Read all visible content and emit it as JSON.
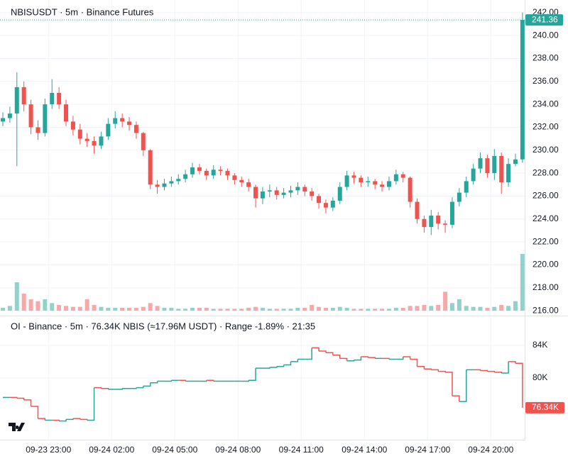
{
  "chart_data": [
    {
      "type": "candlestick",
      "title": "NBISUSDT · 5m · Binance Futures",
      "x": [
        "09-23 20:40",
        "09-23 21:00",
        "09-23 21:20",
        "09-23 21:40",
        "09-23 22:00",
        "09-23 22:20",
        "09-23 22:40",
        "09-23 23:00",
        "09-23 23:20",
        "09-23 23:40",
        "09-24 00:00",
        "09-24 00:20",
        "09-24 00:40",
        "09-24 01:00",
        "09-24 01:20",
        "09-24 01:40",
        "09-24 02:00",
        "09-24 02:20",
        "09-24 02:40",
        "09-24 03:00",
        "09-24 03:20",
        "09-24 03:40",
        "09-24 04:00",
        "09-24 04:20",
        "09-24 04:40",
        "09-24 05:00",
        "09-24 05:20",
        "09-24 05:40",
        "09-24 06:00",
        "09-24 06:20",
        "09-24 06:40",
        "09-24 07:00",
        "09-24 07:20",
        "09-24 07:40",
        "09-24 08:00",
        "09-24 08:20",
        "09-24 08:40",
        "09-24 09:00",
        "09-24 09:20",
        "09-24 09:40",
        "09-24 10:00",
        "09-24 10:20",
        "09-24 10:40",
        "09-24 11:00",
        "09-24 11:20",
        "09-24 11:40",
        "09-24 12:00",
        "09-24 12:20",
        "09-24 12:40",
        "09-24 13:00",
        "09-24 13:20",
        "09-24 13:40",
        "09-24 14:00",
        "09-24 14:20",
        "09-24 14:40",
        "09-24 15:00",
        "09-24 15:20",
        "09-24 15:40",
        "09-24 16:00",
        "09-24 16:20",
        "09-24 16:40",
        "09-24 17:00",
        "09-24 17:20",
        "09-24 17:40",
        "09-24 18:00",
        "09-24 18:20",
        "09-24 18:40",
        "09-24 19:00",
        "09-24 19:20",
        "09-24 19:40",
        "09-24 20:00",
        "09-24 20:20",
        "09-24 20:40",
        "09-24 21:00",
        "09-24 21:20"
      ],
      "open": [
        232.5,
        232.8,
        233.2,
        235.5,
        234,
        232,
        231.5,
        234,
        235,
        234,
        232.5,
        231.8,
        231,
        230.8,
        230.4,
        231.2,
        232.3,
        232.8,
        232.5,
        232.2,
        231.5,
        230,
        227,
        226.8,
        227.1,
        227.3,
        227.5,
        227.9,
        228.5,
        228.2,
        227.8,
        228.3,
        228.2,
        227.8,
        227.4,
        227.2,
        226.8,
        225.8,
        226.4,
        226.5,
        226.1,
        226.3,
        226.5,
        226.8,
        226.4,
        226,
        225.4,
        225,
        225.6,
        226.8,
        227.8,
        227.6,
        227.2,
        227.3,
        227,
        226.8,
        227.3,
        227.9,
        227.6,
        225.5,
        224,
        223.3,
        224.3,
        223.6,
        223.5,
        225.5,
        226.3,
        227.3,
        228.4,
        229.3,
        228,
        229.5,
        227.2,
        228.8,
        229.2
      ],
      "high": [
        233.3,
        233.8,
        236.8,
        236,
        234.4,
        232.6,
        234.5,
        236.2,
        235.5,
        234.4,
        233,
        232.3,
        231.5,
        231.2,
        231.6,
        232.8,
        233.4,
        233.2,
        232.9,
        232.5,
        231.6,
        230.1,
        227.4,
        227.5,
        227.7,
        227.9,
        228.3,
        228.9,
        228.8,
        228.4,
        228.7,
        228.6,
        228.4,
        228,
        227.7,
        227.5,
        227,
        226.8,
        227,
        226.8,
        226.7,
        226.9,
        227.2,
        227,
        226.7,
        226.2,
        225.7,
        225.9,
        227.2,
        228.2,
        228.1,
        227.8,
        227.7,
        227.5,
        227.3,
        227.7,
        228.3,
        228.1,
        227.7,
        225.8,
        224.3,
        224.8,
        224.6,
        223.9,
        225.9,
        226.7,
        227.7,
        228.8,
        229.8,
        229.6,
        230.1,
        229.8,
        229.3,
        229.7,
        242
      ],
      "low": [
        232.1,
        232.4,
        228.6,
        233.4,
        231.4,
        230.9,
        231.2,
        233.6,
        233.6,
        232.1,
        231.3,
        230.5,
        230.3,
        229.7,
        230.1,
        230.9,
        231.9,
        232,
        231.7,
        231,
        229.5,
        226.6,
        226.2,
        226.5,
        226.8,
        227,
        227.2,
        227.6,
        227.9,
        227.4,
        227.5,
        227.8,
        227.4,
        227,
        226.8,
        226.4,
        225,
        225.3,
        225.9,
        225.7,
        225.8,
        225.9,
        226.1,
        226,
        225.6,
        224.9,
        224.5,
        224.7,
        225.3,
        226.5,
        227.1,
        226.8,
        226.8,
        226.6,
        226.4,
        226.5,
        227,
        227.2,
        225,
        223.6,
        222.8,
        222.6,
        223.1,
        222.8,
        223.2,
        225.1,
        225.9,
        227,
        228,
        227.6,
        227.4,
        226.2,
        226.8,
        228.6,
        228.9
      ],
      "close": [
        232.8,
        233.2,
        235.5,
        234,
        232,
        231.5,
        234,
        235,
        234,
        232.5,
        231.8,
        231,
        230.8,
        230.4,
        231.2,
        232.3,
        232.8,
        232.5,
        232.2,
        231.5,
        230,
        227,
        226.8,
        227.1,
        227.3,
        227.5,
        227.9,
        228.5,
        228.2,
        227.8,
        228.3,
        228.2,
        227.8,
        227.4,
        227.2,
        226.8,
        225.8,
        226.4,
        226.5,
        226.1,
        226.3,
        226.5,
        226.8,
        226.4,
        226,
        225.4,
        225,
        225.6,
        226.8,
        227.8,
        227.6,
        227.2,
        227.3,
        227,
        226.8,
        227.3,
        227.9,
        227.6,
        225.5,
        224,
        223.3,
        224.3,
        223.6,
        223.5,
        225.5,
        226.3,
        227.3,
        228.4,
        229.3,
        228,
        229.5,
        227.2,
        228.8,
        229.2,
        241.36
      ],
      "volume": [
        3,
        5,
        30,
        18,
        12,
        10,
        12,
        8,
        6,
        5,
        4,
        4,
        12,
        6,
        4,
        3,
        3,
        3,
        3,
        3,
        4,
        8,
        5,
        3,
        3,
        2,
        2,
        3,
        3,
        3,
        2,
        2,
        2,
        2,
        2,
        3,
        4,
        3,
        2,
        2,
        2,
        2,
        3,
        3,
        6,
        4,
        3,
        3,
        4,
        3,
        2,
        2,
        2,
        2,
        2,
        2,
        3,
        3,
        5,
        5,
        6,
        5,
        6,
        20,
        8,
        12,
        5,
        4,
        4,
        3,
        4,
        6,
        5,
        10,
        60
      ],
      "close_label": "241.36",
      "up_color": "#26a69a",
      "down_color": "#ef5350",
      "ylim": [
        215.7,
        243.1
      ],
      "yticks": [
        {
          "value": 216,
          "label": "216.00"
        },
        {
          "value": 218,
          "label": "218.00"
        },
        {
          "value": 220,
          "label": "220.00"
        },
        {
          "value": 222,
          "label": "222.00"
        },
        {
          "value": 224,
          "label": "224.00"
        },
        {
          "value": 226,
          "label": "226.00"
        },
        {
          "value": 228,
          "label": "228.00"
        },
        {
          "value": 230,
          "label": "230.00"
        },
        {
          "value": 232,
          "label": "232.00"
        },
        {
          "value": 234,
          "label": "234.00"
        },
        {
          "value": 236,
          "label": "236.00"
        },
        {
          "value": 238,
          "label": "238.00"
        },
        {
          "value": 240,
          "label": "240.00"
        },
        {
          "value": 242,
          "label": "242.00"
        }
      ],
      "xticks": [
        "09-23 23:00",
        "09-24 02:00",
        "09-24 05:00",
        "09-24 08:00",
        "09-24 11:00",
        "09-24 14:00",
        "09-24 17:00",
        "09-24 20:00"
      ],
      "grid": true
    },
    {
      "type": "line",
      "title": "OI - Binance · 5m · 76.34K NBIS (≈17.96M USDT) · Range -1.89% · 21:35",
      "values": [
        77.6,
        77.6,
        77.5,
        77.3,
        76.5,
        75.0,
        74.8,
        74.8,
        74.7,
        74.9,
        75.0,
        74.9,
        74.8,
        78.8,
        78.7,
        78.6,
        78.6,
        78.7,
        78.7,
        78.8,
        79.0,
        79.4,
        79.6,
        79.6,
        79.7,
        79.7,
        79.6,
        79.6,
        79.6,
        79.7,
        79.6,
        79.6,
        79.6,
        79.6,
        79.6,
        79.7,
        81.2,
        81.2,
        81.3,
        81.4,
        81.6,
        82.0,
        82.3,
        82.3,
        83.7,
        83.3,
        83.1,
        82.8,
        82.4,
        82.1,
        82.2,
        82.6,
        82.5,
        82.4,
        82.4,
        82.3,
        82.3,
        82.6,
        82.3,
        81.4,
        81.1,
        81.0,
        80.8,
        80.7,
        77.8,
        77.1,
        81.0,
        81.0,
        80.9,
        80.8,
        80.7,
        80.6,
        82.0,
        81.8,
        76.34
      ],
      "last_label": "76.34K",
      "ylim": [
        72.4,
        87.4
      ],
      "yticks": [
        {
          "value": 80,
          "label": "80K"
        },
        {
          "value": 84,
          "label": "84K"
        }
      ],
      "grid": true
    }
  ]
}
